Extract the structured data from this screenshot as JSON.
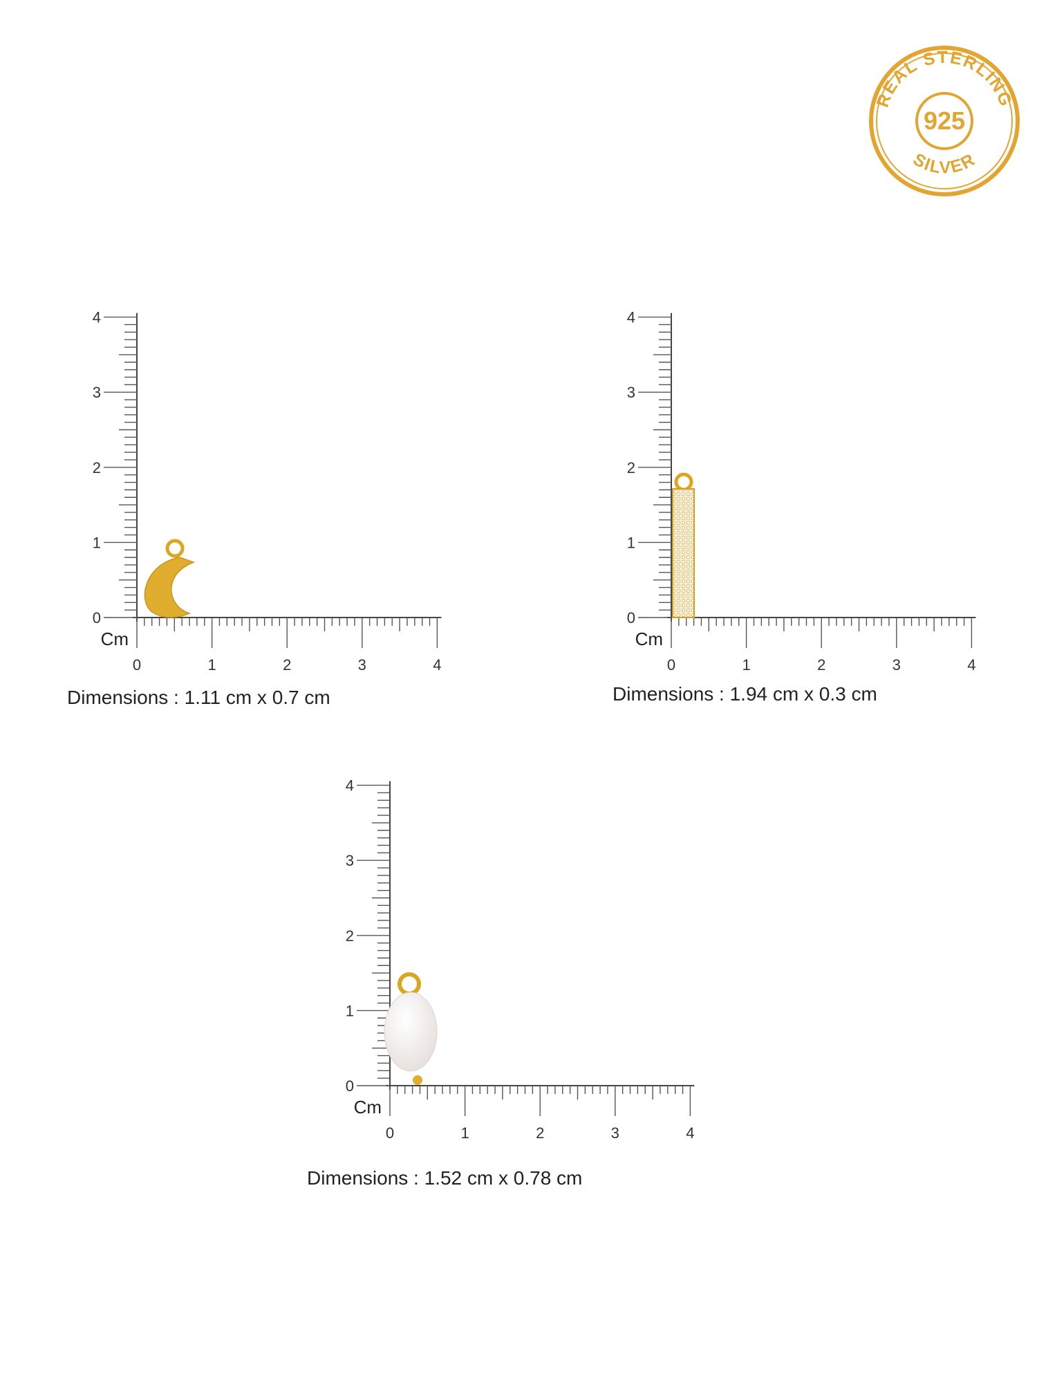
{
  "badge": {
    "top": "REAL STERLING",
    "center": "925",
    "bottom": "SILVER"
  },
  "panels": [
    {
      "unit": "Cm",
      "xticks": [
        0,
        1,
        2,
        3,
        4
      ],
      "yticks": [
        0,
        1,
        2,
        3,
        4
      ],
      "dimensions": "Dimensions : 1.11 cm x 0.7 cm"
    },
    {
      "unit": "Cm",
      "xticks": [
        0,
        1,
        2,
        3,
        4
      ],
      "yticks": [
        0,
        1,
        2,
        3,
        4
      ],
      "dimensions": "Dimensions : 1.94 cm x 0.3 cm"
    },
    {
      "unit": "Cm",
      "xticks": [
        0,
        1,
        2,
        3,
        4
      ],
      "yticks": [
        0,
        1,
        2,
        3,
        4
      ],
      "dimensions": "Dimensions : 1.52 cm x 0.78 cm"
    }
  ]
}
